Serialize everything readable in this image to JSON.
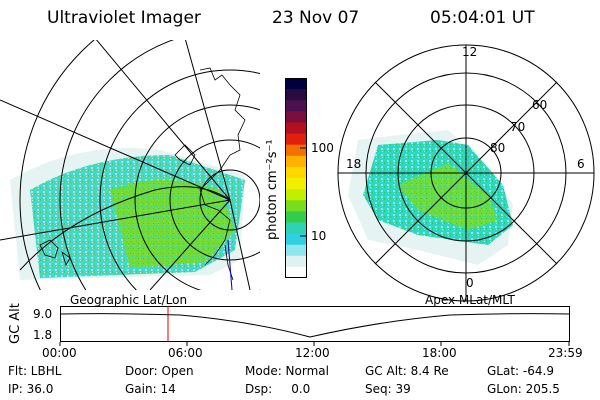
{
  "header": {
    "title": "Ultraviolet Imager",
    "date": "23 Nov 07",
    "time": "05:04:01 UT"
  },
  "colorbar": {
    "ylabel": "photon cm⁻²s⁻¹",
    "ticks": [
      "100",
      "10"
    ],
    "colors": [
      "#000040",
      "#2a0b3f",
      "#4c1150",
      "#7a0e3e",
      "#b01020",
      "#e0200a",
      "#f07000",
      "#ffb000",
      "#ffd800",
      "#f0f000",
      "#c0f000",
      "#7adc1e",
      "#34cc4c",
      "#2fd3b4",
      "#2ed0e4",
      "#8fe6ec",
      "#dff2f2",
      "#ffffff"
    ]
  },
  "geo_panel": {
    "label": "Geographic Lat/Lon"
  },
  "polar_panel": {
    "label": "Apex  MLat/MLT",
    "mlt_labels": {
      "top": "12",
      "left": "18",
      "right": "6",
      "bottom": "0"
    },
    "lat_labels": [
      "60",
      "70",
      "80"
    ]
  },
  "timeline": {
    "ylabel": "GC Alt",
    "ytick_top": "9.0",
    "ytick_bottom": "1.8",
    "xticks": [
      "00:00",
      "06:00",
      "12:00",
      "18:00",
      "23:59"
    ]
  },
  "footer": {
    "flt": "Flt: LBHL",
    "door": "Door: Open",
    "mode": "Mode: Normal",
    "gcalt": "GC Alt: 8.4 Re",
    "glat": "GLat: -64.9",
    "ip": "IP: 36.0",
    "gain": "Gain: 14",
    "dsp": "Dsp:     0.0",
    "seq": "Seq: 39",
    "glon": "GLon: 205.5"
  }
}
